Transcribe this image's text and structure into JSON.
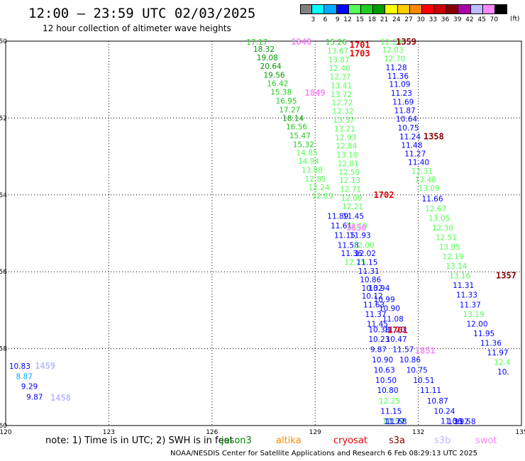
{
  "title": "12:00 — 23:59 UTC 02/03/2025",
  "subtitle": "12 hour collection of altimeter wave heights",
  "colorbar": {
    "unit": "(ft)",
    "bins": [
      {
        "color": "#808080",
        "label": "3"
      },
      {
        "color": "#00ffff",
        "label": "6"
      },
      {
        "color": "#00aaff",
        "label": "9"
      },
      {
        "color": "#0000ff",
        "label": "12"
      },
      {
        "color": "#55ff55",
        "label": "15"
      },
      {
        "color": "#22cc22",
        "label": "18"
      },
      {
        "color": "#009900",
        "label": "21"
      },
      {
        "color": "#ffff00",
        "label": "24"
      },
      {
        "color": "#ffcc00",
        "label": "27"
      },
      {
        "color": "#ff8800",
        "label": "30"
      },
      {
        "color": "#ff0000",
        "label": "33"
      },
      {
        "color": "#cc0000",
        "label": "36"
      },
      {
        "color": "#880000",
        "label": "39"
      },
      {
        "color": "#aa00aa",
        "label": "42"
      },
      {
        "color": "#bbbbff",
        "label": "45"
      },
      {
        "color": "#ff88ff",
        "label": "70"
      },
      {
        "color": "#000000",
        "label": ""
      }
    ]
  },
  "footnote": "note:  1) Time is in UTC;  2) SWH is in feet",
  "legend": [
    {
      "name": "jason3",
      "color": "#008800"
    },
    {
      "name": "altika",
      "color": "#ff8800"
    },
    {
      "name": "cryosat",
      "color": "#dd0000"
    },
    {
      "name": "s3a",
      "color": "#880000"
    },
    {
      "name": "s3b",
      "color": "#bbbbff"
    },
    {
      "name": "swot",
      "color": "#ff88ff"
    }
  ],
  "credit": "NOAA/NESDIS Center for Satellite Applications and Research     6 Feb 08:29:13 UTC 2025",
  "chart_data": {
    "type": "scatter",
    "title": "12:00 — 23:59 UTC 02/03/2025",
    "xlim": [
      120,
      135
    ],
    "ylim": [
      -60,
      -50
    ],
    "xticks": [
      "120",
      "123",
      "126",
      "129",
      "132",
      "135"
    ],
    "yticks": [
      "-50",
      "-52",
      "-54",
      "-56",
      "-58",
      "-60"
    ],
    "grid": true,
    "labels": [
      {
        "x": 127.0,
        "y": -50.02,
        "t": "17.17",
        "c": "#22cc22"
      },
      {
        "x": 127.2,
        "y": -50.2,
        "t": "18.32",
        "c": "#009900"
      },
      {
        "x": 127.3,
        "y": -50.42,
        "t": "19.08",
        "c": "#009900"
      },
      {
        "x": 127.4,
        "y": -50.65,
        "t": "20.64",
        "c": "#009900"
      },
      {
        "x": 127.5,
        "y": -50.88,
        "t": "19.56",
        "c": "#009900"
      },
      {
        "x": 127.6,
        "y": -51.1,
        "t": "16.42",
        "c": "#22cc22"
      },
      {
        "x": 127.7,
        "y": -51.32,
        "t": "15.38",
        "c": "#22cc22"
      },
      {
        "x": 127.85,
        "y": -51.55,
        "t": "16.95",
        "c": "#22cc22"
      },
      {
        "x": 127.95,
        "y": -51.78,
        "t": "17.27",
        "c": "#22cc22"
      },
      {
        "x": 128.05,
        "y": -52.0,
        "t": "18.14",
        "c": "#009900"
      },
      {
        "x": 128.15,
        "y": -52.22,
        "t": "16.56",
        "c": "#22cc22"
      },
      {
        "x": 128.25,
        "y": -52.45,
        "t": "15.47",
        "c": "#22cc22"
      },
      {
        "x": 128.35,
        "y": -52.68,
        "t": "15.32",
        "c": "#22cc22"
      },
      {
        "x": 128.45,
        "y": -52.9,
        "t": "14.85",
        "c": "#55ff55"
      },
      {
        "x": 128.5,
        "y": -53.12,
        "t": "14.94",
        "c": "#55ff55"
      },
      {
        "x": 128.6,
        "y": -53.35,
        "t": "13.88",
        "c": "#55ff55"
      },
      {
        "x": 128.7,
        "y": -53.58,
        "t": "12.85",
        "c": "#55ff55"
      },
      {
        "x": 128.8,
        "y": -53.8,
        "t": "12.24",
        "c": "#55ff55"
      },
      {
        "x": 128.9,
        "y": -54.02,
        "t": "12.89",
        "c": "#55ff55"
      },
      {
        "x": 129.3,
        "y": -50.02,
        "t": "15.26",
        "c": "#22cc22"
      },
      {
        "x": 129.35,
        "y": -50.25,
        "t": "13.67",
        "c": "#55ff55"
      },
      {
        "x": 129.38,
        "y": -50.48,
        "t": "13.87",
        "c": "#55ff55"
      },
      {
        "x": 129.4,
        "y": -50.7,
        "t": "12.40",
        "c": "#55ff55"
      },
      {
        "x": 129.42,
        "y": -50.92,
        "t": "12.37",
        "c": "#55ff55"
      },
      {
        "x": 129.45,
        "y": -51.15,
        "t": "13.41",
        "c": "#55ff55"
      },
      {
        "x": 129.45,
        "y": -51.38,
        "t": "13.72",
        "c": "#55ff55"
      },
      {
        "x": 129.48,
        "y": -51.6,
        "t": "12.72",
        "c": "#55ff55"
      },
      {
        "x": 129.5,
        "y": -51.82,
        "t": "12.32",
        "c": "#55ff55"
      },
      {
        "x": 129.52,
        "y": -52.05,
        "t": "13.37",
        "c": "#55ff55"
      },
      {
        "x": 129.55,
        "y": -52.28,
        "t": "13.21",
        "c": "#55ff55"
      },
      {
        "x": 129.58,
        "y": -52.5,
        "t": "12.93",
        "c": "#55ff55"
      },
      {
        "x": 129.6,
        "y": -52.72,
        "t": "12.84",
        "c": "#55ff55"
      },
      {
        "x": 129.62,
        "y": -52.95,
        "t": "13.10",
        "c": "#55ff55"
      },
      {
        "x": 129.65,
        "y": -53.18,
        "t": "12.81",
        "c": "#55ff55"
      },
      {
        "x": 129.68,
        "y": -53.4,
        "t": "12.50",
        "c": "#55ff55"
      },
      {
        "x": 129.7,
        "y": -53.62,
        "t": "12.13",
        "c": "#55ff55"
      },
      {
        "x": 129.72,
        "y": -53.85,
        "t": "12.71",
        "c": "#55ff55"
      },
      {
        "x": 129.75,
        "y": -54.08,
        "t": "12.09",
        "c": "#55ff55"
      },
      {
        "x": 129.78,
        "y": -54.3,
        "t": "12.21",
        "c": "#55ff55"
      },
      {
        "x": 129.35,
        "y": -54.55,
        "t": "11.89",
        "c": "#0000ff"
      },
      {
        "x": 129.8,
        "y": -54.55,
        "t": "11.45",
        "c": "#0000ff"
      },
      {
        "x": 129.45,
        "y": -54.8,
        "t": "11.61",
        "c": "#0000ff"
      },
      {
        "x": 129.9,
        "y": -54.8,
        "t": "12.10",
        "c": "#55ff55"
      },
      {
        "x": 129.55,
        "y": -55.05,
        "t": "11.15",
        "c": "#0000ff"
      },
      {
        "x": 130.0,
        "y": -55.05,
        "t": "11.93",
        "c": "#0000ff"
      },
      {
        "x": 129.65,
        "y": -55.3,
        "t": "11.58",
        "c": "#0000ff"
      },
      {
        "x": 130.1,
        "y": -55.3,
        "t": "12.00",
        "c": "#55ff55"
      },
      {
        "x": 129.75,
        "y": -55.52,
        "t": "11.36",
        "c": "#0000ff"
      },
      {
        "x": 130.15,
        "y": -55.52,
        "t": "12.02",
        "c": "#0000ff"
      },
      {
        "x": 129.85,
        "y": -55.75,
        "t": "12.25",
        "c": "#55ff55"
      },
      {
        "x": 130.2,
        "y": -55.75,
        "t": "11.15",
        "c": "#0000ff"
      },
      {
        "x": 130.25,
        "y": -55.98,
        "t": "11.31",
        "c": "#0000ff"
      },
      {
        "x": 130.3,
        "y": -56.2,
        "t": "10.86",
        "c": "#0000ff"
      },
      {
        "x": 130.35,
        "y": -56.42,
        "t": "10.32",
        "c": "#0000ff"
      },
      {
        "x": 130.55,
        "y": -56.42,
        "t": "10.94",
        "c": "#0000ff"
      },
      {
        "x": 130.35,
        "y": -56.62,
        "t": "10.12",
        "c": "#0000ff"
      },
      {
        "x": 130.7,
        "y": -56.72,
        "t": "10.99",
        "c": "#0000ff"
      },
      {
        "x": 130.4,
        "y": -56.85,
        "t": "11.63",
        "c": "#0000ff"
      },
      {
        "x": 130.85,
        "y": -56.95,
        "t": "10.90",
        "c": "#0000ff"
      },
      {
        "x": 130.45,
        "y": -57.1,
        "t": "11.37",
        "c": "#0000ff"
      },
      {
        "x": 130.95,
        "y": -57.22,
        "t": "11.08",
        "c": "#0000ff"
      },
      {
        "x": 130.5,
        "y": -57.35,
        "t": "11.45",
        "c": "#0000ff"
      },
      {
        "x": 130.55,
        "y": -57.5,
        "t": "10.38",
        "c": "#0000ff"
      },
      {
        "x": 131.0,
        "y": -57.5,
        "t": "11.20",
        "c": "#0000ff"
      },
      {
        "x": 130.55,
        "y": -57.75,
        "t": "10.23",
        "c": "#0000ff"
      },
      {
        "x": 131.05,
        "y": -57.75,
        "t": "10.47",
        "c": "#0000ff"
      },
      {
        "x": 130.6,
        "y": -58.02,
        "t": "9.87",
        "c": "#0000ff"
      },
      {
        "x": 131.25,
        "y": -58.02,
        "t": "11.57",
        "c": "#0000ff"
      },
      {
        "x": 130.65,
        "y": -58.28,
        "t": "10.90",
        "c": "#0000ff"
      },
      {
        "x": 131.45,
        "y": -58.28,
        "t": "10.86",
        "c": "#0000ff"
      },
      {
        "x": 130.7,
        "y": -58.55,
        "t": "10.63",
        "c": "#0000ff"
      },
      {
        "x": 131.65,
        "y": -58.55,
        "t": "10.75",
        "c": "#0000ff"
      },
      {
        "x": 130.75,
        "y": -58.82,
        "t": "10.50",
        "c": "#0000ff"
      },
      {
        "x": 131.85,
        "y": -58.82,
        "t": "10.51",
        "c": "#0000ff"
      },
      {
        "x": 130.8,
        "y": -59.08,
        "t": "10.80",
        "c": "#0000ff"
      },
      {
        "x": 132.05,
        "y": -59.08,
        "t": "11.11",
        "c": "#0000ff"
      },
      {
        "x": 130.85,
        "y": -59.35,
        "t": "12.25",
        "c": "#55ff55"
      },
      {
        "x": 132.25,
        "y": -59.35,
        "t": "10.87",
        "c": "#0000ff"
      },
      {
        "x": 130.9,
        "y": -59.62,
        "t": "11.15",
        "c": "#0000ff"
      },
      {
        "x": 132.45,
        "y": -59.62,
        "t": "10.24",
        "c": "#0000ff"
      },
      {
        "x": 130.95,
        "y": -59.88,
        "t": "12.59",
        "c": "#55ff55"
      },
      {
        "x": 132.65,
        "y": -59.88,
        "t": "11.36",
        "c": "#0000ff"
      },
      {
        "x": 131.0,
        "y": -60.15,
        "t": "11.77",
        "c": "#0000ff"
      },
      {
        "x": 132.85,
        "y": -60.15,
        "t": "10.97",
        "c": "#0000ff"
      },
      {
        "x": 131.05,
        "y": -60.4,
        "t": "11.68",
        "c": "#0000ff"
      },
      {
        "x": 133.05,
        "y": -60.4,
        "t": "11.58",
        "c": "#0000ff"
      },
      {
        "x": 130.9,
        "y": -50.02,
        "t": "12.29",
        "c": "#55ff55"
      },
      {
        "x": 130.95,
        "y": -50.22,
        "t": "12.03",
        "c": "#55ff55"
      },
      {
        "x": 131.0,
        "y": -50.45,
        "t": "12.70",
        "c": "#55ff55"
      },
      {
        "x": 131.05,
        "y": -50.68,
        "t": "11.28",
        "c": "#0000ff"
      },
      {
        "x": 131.1,
        "y": -50.9,
        "t": "11.36",
        "c": "#0000ff"
      },
      {
        "x": 131.15,
        "y": -51.12,
        "t": "11.09",
        "c": "#0000ff"
      },
      {
        "x": 131.2,
        "y": -51.35,
        "t": "11.23",
        "c": "#0000ff"
      },
      {
        "x": 131.25,
        "y": -51.58,
        "t": "11.69",
        "c": "#0000ff"
      },
      {
        "x": 131.3,
        "y": -51.8,
        "t": "11.87",
        "c": "#0000ff"
      },
      {
        "x": 131.35,
        "y": -52.02,
        "t": "10.64",
        "c": "#0000ff"
      },
      {
        "x": 131.4,
        "y": -52.25,
        "t": "10.75",
        "c": "#0000ff"
      },
      {
        "x": 131.45,
        "y": -52.48,
        "t": "11.24",
        "c": "#0000ff"
      },
      {
        "x": 131.5,
        "y": -52.7,
        "t": "11.48",
        "c": "#0000ff"
      },
      {
        "x": 131.6,
        "y": -52.92,
        "t": "11.27",
        "c": "#0000ff"
      },
      {
        "x": 131.7,
        "y": -53.15,
        "t": "11.40",
        "c": "#0000ff"
      },
      {
        "x": 131.8,
        "y": -53.38,
        "t": "12.31",
        "c": "#55ff55"
      },
      {
        "x": 131.9,
        "y": -53.6,
        "t": "13.48",
        "c": "#55ff55"
      },
      {
        "x": 132.0,
        "y": -53.82,
        "t": "13.09",
        "c": "#55ff55"
      },
      {
        "x": 132.1,
        "y": -54.1,
        "t": "11.66",
        "c": "#0000ff"
      },
      {
        "x": 132.2,
        "y": -54.35,
        "t": "12.67",
        "c": "#55ff55"
      },
      {
        "x": 132.3,
        "y": -54.6,
        "t": "13.05",
        "c": "#55ff55"
      },
      {
        "x": 132.4,
        "y": -54.85,
        "t": "12.30",
        "c": "#55ff55"
      },
      {
        "x": 132.5,
        "y": -55.1,
        "t": "12.51",
        "c": "#55ff55"
      },
      {
        "x": 132.6,
        "y": -55.35,
        "t": "13.85",
        "c": "#55ff55"
      },
      {
        "x": 132.7,
        "y": -55.6,
        "t": "12.19",
        "c": "#55ff55"
      },
      {
        "x": 132.8,
        "y": -55.85,
        "t": "13.14",
        "c": "#55ff55"
      },
      {
        "x": 132.9,
        "y": -56.1,
        "t": "13.16",
        "c": "#55ff55"
      },
      {
        "x": 133.0,
        "y": -56.35,
        "t": "11.31",
        "c": "#0000ff"
      },
      {
        "x": 133.1,
        "y": -56.6,
        "t": "11.33",
        "c": "#0000ff"
      },
      {
        "x": 133.2,
        "y": -56.85,
        "t": "11.37",
        "c": "#0000ff"
      },
      {
        "x": 133.3,
        "y": -57.1,
        "t": "13.19",
        "c": "#55ff55"
      },
      {
        "x": 133.4,
        "y": -57.35,
        "t": "12.00",
        "c": "#0000ff"
      },
      {
        "x": 133.6,
        "y": -57.6,
        "t": "11.95",
        "c": "#0000ff"
      },
      {
        "x": 133.8,
        "y": -57.85,
        "t": "11.36",
        "c": "#0000ff"
      },
      {
        "x": 134.0,
        "y": -58.1,
        "t": "11.97",
        "c": "#0000ff"
      },
      {
        "x": 134.2,
        "y": -58.35,
        "t": "12.4",
        "c": "#55ff55"
      },
      {
        "x": 134.3,
        "y": -58.6,
        "t": "10.",
        "c": "#0000ff"
      },
      {
        "x": 120.1,
        "y": -58.45,
        "t": "10.83",
        "c": "#0000ff"
      },
      {
        "x": 120.3,
        "y": -58.72,
        "t": "8.87",
        "c": "#00aaff"
      },
      {
        "x": 120.45,
        "y": -58.98,
        "t": "9.29",
        "c": "#0000ff"
      },
      {
        "x": 120.6,
        "y": -59.25,
        "t": "9.87",
        "c": "#0000ff"
      }
    ],
    "times": [
      {
        "x": 128.3,
        "y": -50.02,
        "t": "1848",
        "c": "#ff88ff"
      },
      {
        "x": 128.7,
        "y": -51.35,
        "t": "1849",
        "c": "#ff88ff"
      },
      {
        "x": 129.9,
        "y": -54.85,
        "t": "1850",
        "c": "#ff88ff"
      },
      {
        "x": 131.9,
        "y": -58.05,
        "t": "1851",
        "c": "#ff88ff"
      },
      {
        "x": 130.0,
        "y": -50.1,
        "t": "1701",
        "c": "#dd0000"
      },
      {
        "x": 130.0,
        "y": -50.32,
        "t": "1703",
        "c": "#dd0000"
      },
      {
        "x": 130.7,
        "y": -54.0,
        "t": "1702",
        "c": "#dd0000"
      },
      {
        "x": 131.1,
        "y": -57.52,
        "t": "1701",
        "c": "#dd0000"
      },
      {
        "x": 131.35,
        "y": -50.02,
        "t": "1359",
        "c": "#880000"
      },
      {
        "x": 132.15,
        "y": -52.48,
        "t": "1358",
        "c": "#880000"
      },
      {
        "x": 134.3,
        "y": -56.1,
        "t": "1357",
        "c": "#880000"
      },
      {
        "x": 120.85,
        "y": -58.45,
        "t": "1459",
        "c": "#bbbbff"
      },
      {
        "x": 121.3,
        "y": -59.28,
        "t": "1458",
        "c": "#bbbbff"
      }
    ]
  }
}
